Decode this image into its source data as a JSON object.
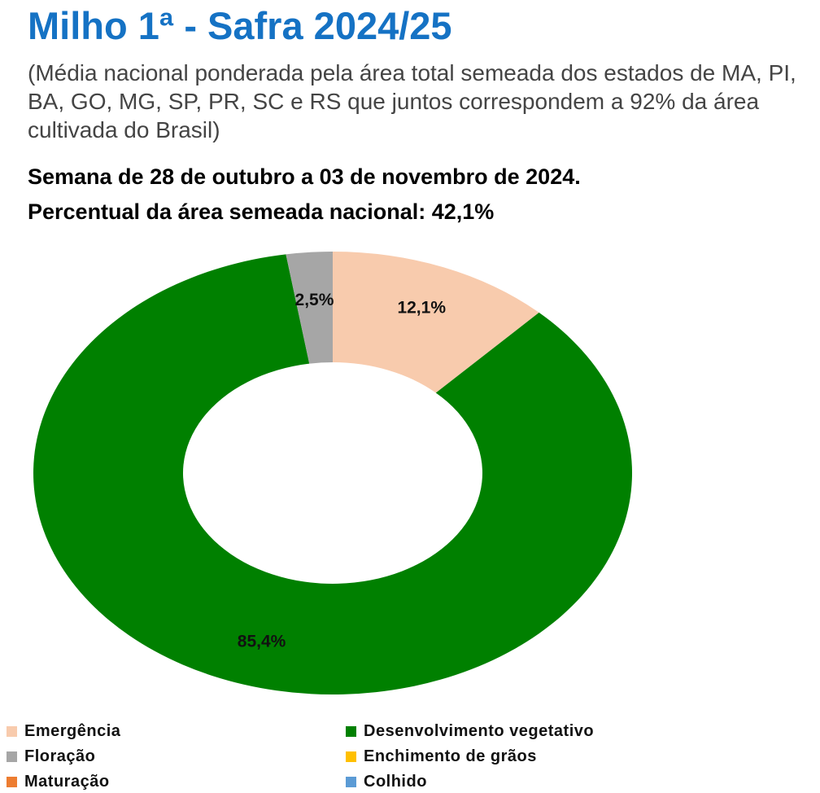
{
  "header": {
    "title": "Milho 1ª - Safra 2024/25",
    "subtitle": "(Média nacional ponderada pela área total semeada dos estados de MA, PI, BA, GO, MG, SP, PR, SC e RS que juntos correspondem a 92% da área cultivada do Brasil)",
    "week": "Semana de 28 de outubro a 03 de novembro de 2024.",
    "national_pct": "Percentual da área semeada nacional: 42,1%"
  },
  "chart_data": {
    "type": "pie",
    "donut": true,
    "title": "Milho 1ª - Safra 2024/25",
    "slices": [
      {
        "name": "Emergência",
        "value": 12.1,
        "label": "12,1%",
        "color": "#f8cbad"
      },
      {
        "name": "Desenvolvimento vegetativo",
        "value": 85.4,
        "label": "85,4%",
        "color": "#008000"
      },
      {
        "name": "Floração",
        "value": 2.5,
        "label": "2,5%",
        "color": "#a6a6a6"
      }
    ],
    "legend": [
      {
        "name": "Emergência",
        "color": "#f8cbad"
      },
      {
        "name": "Desenvolvimento vegetativo",
        "color": "#008000"
      },
      {
        "name": "Floração",
        "color": "#a6a6a6"
      },
      {
        "name": "Enchimento de grãos",
        "color": "#ffc000"
      },
      {
        "name": "Maturação",
        "color": "#ed7d31"
      },
      {
        "name": "Colhido",
        "color": "#5b9bd5"
      }
    ],
    "legend_position": "bottom"
  }
}
